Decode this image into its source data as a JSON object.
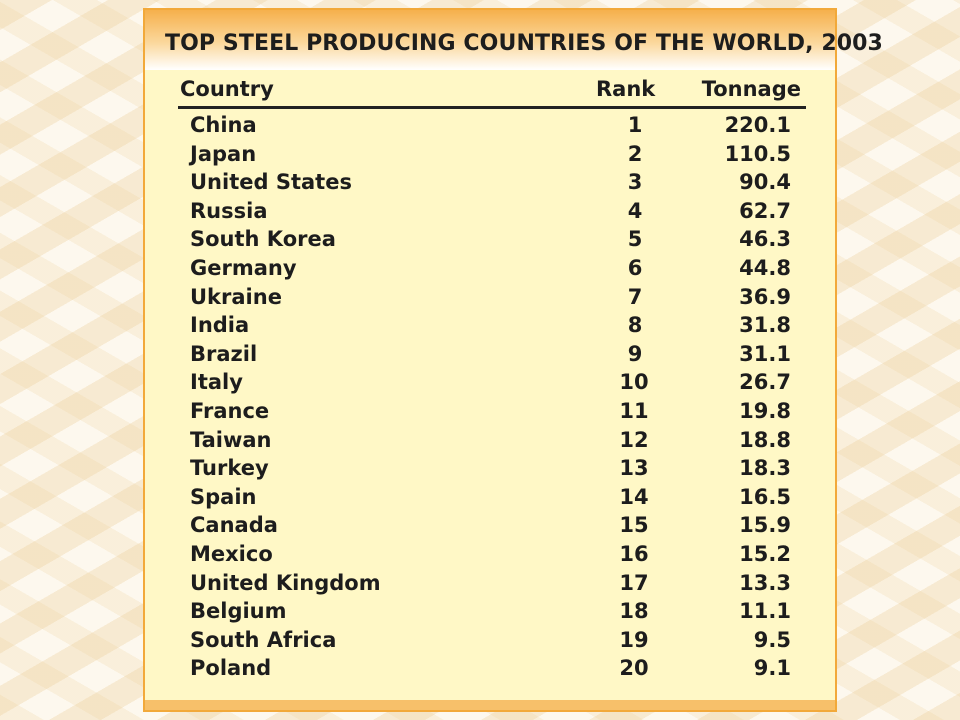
{
  "table": {
    "title": "TOP STEEL PRODUCING COUNTRIES OF THE WORLD, 2003",
    "columns": [
      "Country",
      "Rank",
      "Tonnage"
    ],
    "rows": [
      [
        "China",
        "1",
        "220.1"
      ],
      [
        "Japan",
        "2",
        "110.5"
      ],
      [
        "United States",
        "3",
        "90.4"
      ],
      [
        "Russia",
        "4",
        "62.7"
      ],
      [
        "South Korea",
        "5",
        "46.3"
      ],
      [
        "Germany",
        "6",
        "44.8"
      ],
      [
        "Ukraine",
        "7",
        "36.9"
      ],
      [
        "India",
        "8",
        "31.8"
      ],
      [
        "Brazil",
        "9",
        "31.1"
      ],
      [
        "Italy",
        "10",
        "26.7"
      ],
      [
        "France",
        "11",
        "19.8"
      ],
      [
        "Taiwan",
        "12",
        "18.8"
      ],
      [
        "Turkey",
        "13",
        "18.3"
      ],
      [
        "Spain",
        "14",
        "16.5"
      ],
      [
        "Canada",
        "15",
        "15.9"
      ],
      [
        "Mexico",
        "16",
        "15.2"
      ],
      [
        "United Kingdom",
        "17",
        "13.3"
      ],
      [
        "Belgium",
        "18",
        "11.1"
      ],
      [
        "South Africa",
        "19",
        "9.5"
      ],
      [
        "Poland",
        "20",
        "9.1"
      ]
    ]
  },
  "colors": {
    "panel_background": "#fff8c6",
    "title_band": "#f6b04c",
    "border": "#f2a93a",
    "text": "#1d1d1d",
    "slide_background": "#fdf8ee"
  }
}
